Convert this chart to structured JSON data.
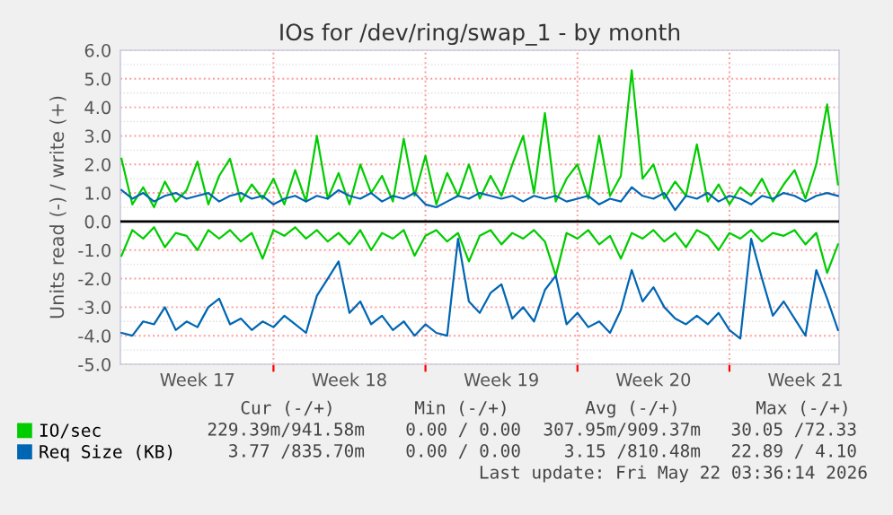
{
  "chart_data": {
    "type": "line",
    "title": "IOs for /dev/ring/swap_1 - by month",
    "ylabel": "Units read (-) / write (+)",
    "categories": [
      null,
      null,
      null,
      null,
      null,
      null,
      null,
      "Week 17",
      null,
      null,
      null,
      null,
      null,
      null,
      null,
      null,
      null,
      null,
      null,
      null,
      null,
      "Week 18",
      null,
      null,
      null,
      null,
      null,
      null,
      null,
      null,
      null,
      null,
      null,
      null,
      null,
      "Week 19",
      null,
      null,
      null,
      null,
      null,
      null,
      null,
      null,
      null,
      null,
      null,
      null,
      null,
      "Week 20",
      null,
      null,
      null,
      null,
      null,
      null,
      null,
      null,
      null,
      null,
      null,
      null,
      null,
      "Week 21",
      null,
      null,
      null
    ],
    "series": [
      {
        "name": "IO/sec",
        "color": "#00cc00",
        "values": [
          2.2,
          0.6,
          1.2,
          0.5,
          1.4,
          0.7,
          1.1,
          2.1,
          0.6,
          1.6,
          2.2,
          0.7,
          1.3,
          0.8,
          1.5,
          0.6,
          1.8,
          0.7,
          3.0,
          0.8,
          1.7,
          0.6,
          2.0,
          1.0,
          1.6,
          0.7,
          2.9,
          0.9,
          2.3,
          0.6,
          1.7,
          0.9,
          2.0,
          0.8,
          1.6,
          0.9,
          2.0,
          3.0,
          1.0,
          3.8,
          0.7,
          1.5,
          2.0,
          0.8,
          3.0,
          0.9,
          1.6,
          5.3,
          1.5,
          2.0,
          0.8,
          1.4,
          0.9,
          2.7,
          0.7,
          1.3,
          0.6,
          1.2,
          0.9,
          1.5,
          0.7,
          1.3,
          1.8,
          0.8,
          2.0,
          4.1,
          1.3
        ]
      },
      {
        "color": "#00cc00",
        "values": [
          -1.2,
          -0.3,
          -0.6,
          -0.2,
          -0.9,
          -0.4,
          -0.5,
          -1.0,
          -0.3,
          -0.6,
          -0.3,
          -0.7,
          -0.4,
          -1.3,
          -0.3,
          -0.5,
          -0.2,
          -0.6,
          -0.3,
          -0.7,
          -0.4,
          -0.8,
          -0.3,
          -1.0,
          -0.4,
          -0.6,
          -0.3,
          -1.2,
          -0.5,
          -0.3,
          -0.7,
          -0.4,
          -1.4,
          -0.5,
          -0.3,
          -0.8,
          -0.4,
          -0.6,
          -0.3,
          -0.7,
          -1.9,
          -0.4,
          -0.6,
          -0.3,
          -0.8,
          -0.5,
          -1.3,
          -0.4,
          -0.6,
          -0.3,
          -0.7,
          -0.4,
          -0.9,
          -0.3,
          -0.5,
          -1.0,
          -0.4,
          -0.6,
          -0.3,
          -0.7,
          -0.4,
          -0.5,
          -0.3,
          -0.8,
          -0.4,
          -1.8,
          -0.8
        ]
      },
      {
        "name": "Req Size (KB)",
        "color": "#0066b3",
        "values": [
          1.1,
          0.8,
          1.0,
          0.7,
          0.9,
          1.0,
          0.8,
          0.9,
          1.0,
          0.7,
          0.9,
          1.0,
          0.8,
          0.9,
          0.6,
          0.8,
          0.9,
          0.7,
          0.9,
          0.8,
          1.1,
          0.9,
          0.8,
          1.0,
          0.7,
          0.9,
          0.8,
          1.0,
          0.6,
          0.5,
          0.7,
          0.9,
          0.8,
          1.0,
          0.9,
          0.8,
          0.9,
          0.7,
          0.9,
          0.8,
          0.9,
          0.7,
          0.8,
          0.9,
          0.6,
          0.8,
          0.7,
          1.2,
          0.9,
          0.8,
          1.0,
          0.4,
          0.9,
          0.8,
          1.0,
          0.7,
          0.9,
          0.8,
          0.6,
          0.9,
          0.8,
          1.0,
          0.9,
          0.7,
          0.9,
          1.0,
          0.9
        ]
      },
      {
        "color": "#0066b3",
        "values": [
          -3.9,
          -4.0,
          -3.5,
          -3.6,
          -3.0,
          -3.8,
          -3.5,
          -3.7,
          -3.0,
          -2.7,
          -3.6,
          -3.4,
          -3.8,
          -3.5,
          -3.7,
          -3.3,
          -3.6,
          -3.9,
          -2.6,
          -2.0,
          -1.4,
          -3.2,
          -2.8,
          -3.6,
          -3.3,
          -3.8,
          -3.5,
          -4.0,
          -3.6,
          -3.9,
          -4.0,
          -0.6,
          -2.8,
          -3.2,
          -2.5,
          -2.2,
          -3.4,
          -3.0,
          -3.5,
          -2.4,
          -1.9,
          -3.6,
          -3.2,
          -3.7,
          -3.5,
          -3.9,
          -3.1,
          -1.7,
          -2.8,
          -2.3,
          -3.0,
          -3.4,
          -3.6,
          -3.3,
          -3.6,
          -3.2,
          -3.8,
          -4.1,
          -0.6,
          -2.0,
          -3.3,
          -2.8,
          -3.4,
          -4.0,
          -1.7,
          -2.7,
          -3.8
        ]
      }
    ],
    "ylim": [
      -5,
      6
    ],
    "yticks": [
      {
        "value": -5,
        "label": "-5.0"
      },
      {
        "value": -4,
        "label": "-4.0"
      },
      {
        "value": -3,
        "label": "-3.0"
      },
      {
        "value": -2,
        "label": "-2.0"
      },
      {
        "value": -1,
        "label": "-1.0"
      },
      {
        "value": 0,
        "label": "0.0"
      },
      {
        "value": 1,
        "label": "1.0"
      },
      {
        "value": 2,
        "label": "2.0"
      },
      {
        "value": 3,
        "label": "3.0"
      },
      {
        "value": 4,
        "label": "4.0"
      },
      {
        "value": 5,
        "label": "5.0"
      },
      {
        "value": 6,
        "label": "6.0"
      }
    ],
    "ref_lines": [
      {
        "axis": "y",
        "value": 0,
        "color": "#000000"
      }
    ],
    "grid": true,
    "legend": "bottom left",
    "annotations": [
      "Cur (-/+)",
      "Min (-/+)",
      "Avg (-/+)",
      "Max (-/+)",
      "229.39m/941.58m",
      "0.00 / 0.00",
      "307.95m/909.37m",
      "30.05 /72.33",
      "3.77 /835.70m",
      "0.00 / 0.00",
      "3.15 /810.48m",
      "22.89 / 4.10",
      "Last update: Fri May 22 03:36:14 2026"
    ]
  }
}
